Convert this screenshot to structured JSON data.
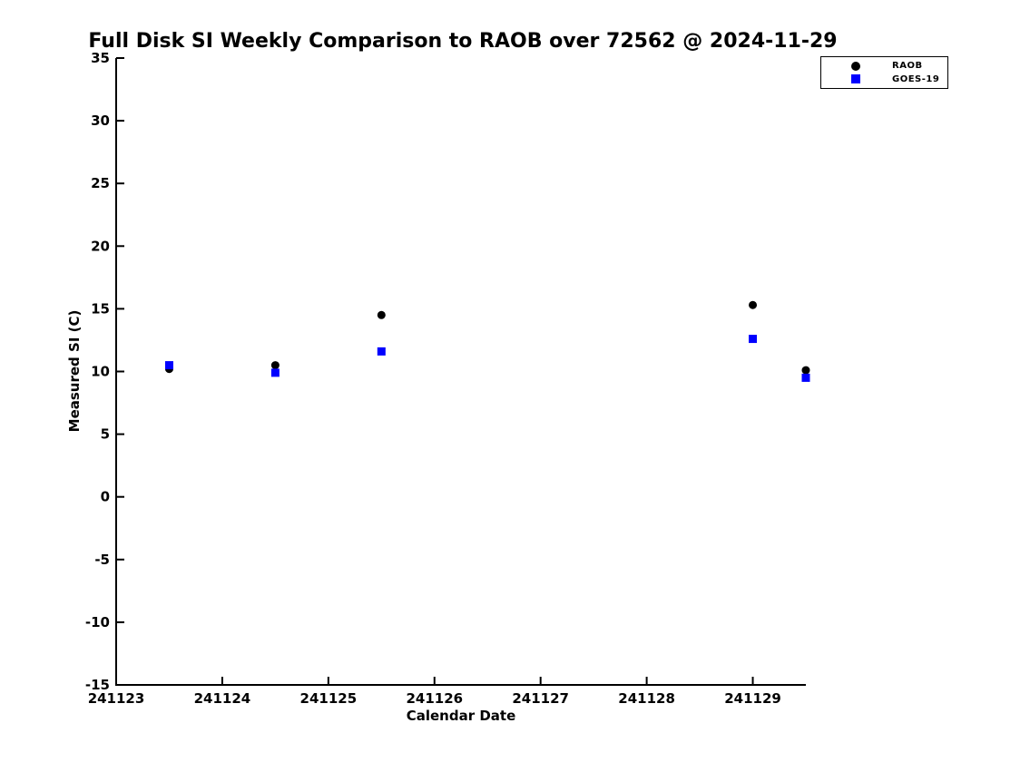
{
  "page": {
    "background_color": "#ffffff"
  },
  "chart_data": {
    "type": "scatter",
    "title": "Full Disk SI Weekly Comparison to RAOB over 72562 @ 2024-11-29",
    "xlabel": "Calendar Date",
    "ylabel": "Measured SI (C)",
    "xlim": [
      241123,
      241129.5
    ],
    "ylim": [
      -15,
      35
    ],
    "xticks": [
      241123,
      241124,
      241125,
      241126,
      241127,
      241128,
      241129
    ],
    "yticks": [
      -15,
      -10,
      -5,
      0,
      5,
      10,
      15,
      20,
      25,
      30,
      35
    ],
    "grid": false,
    "legend_position": "upper right",
    "axis_color": "#000000",
    "series": [
      {
        "name": "RAOB",
        "marker": "circle",
        "color": "#000000",
        "points": [
          [
            241123.5,
            10.2
          ],
          [
            241124.5,
            10.5
          ],
          [
            241125.5,
            14.5
          ],
          [
            241129.0,
            15.3
          ],
          [
            241129.5,
            10.1
          ]
        ]
      },
      {
        "name": "GOES-19",
        "marker": "square",
        "color": "#0000ff",
        "points": [
          [
            241123.5,
            10.5
          ],
          [
            241124.5,
            9.9
          ],
          [
            241125.5,
            11.6
          ],
          [
            241129.0,
            12.6
          ],
          [
            241129.5,
            9.5
          ]
        ]
      }
    ]
  }
}
